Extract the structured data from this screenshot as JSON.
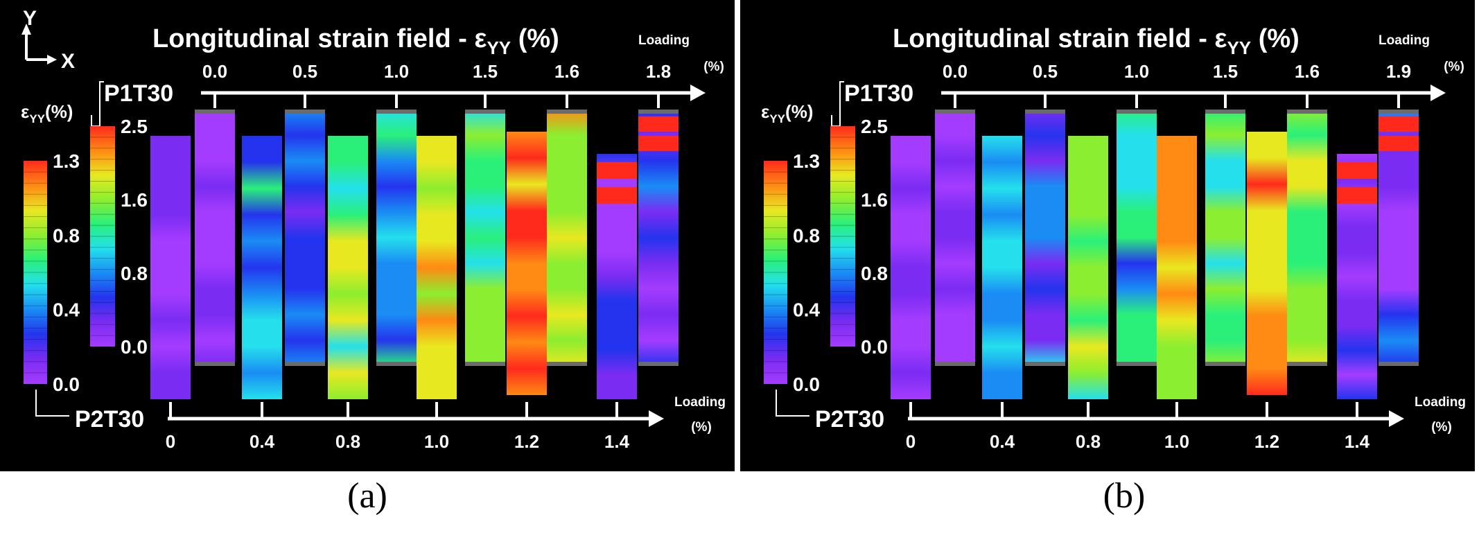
{
  "panels": [
    {
      "id": "a",
      "caption": "(a)",
      "title_prefix": "Longitudinal strain field - ε",
      "title_sub": "YY",
      "title_suffix": "  (%)",
      "axis_y": "Y",
      "axis_x": "X",
      "loading_top": [
        "Loading",
        "(%)"
      ],
      "loading_bottom": [
        "Loading",
        "(%)"
      ],
      "specimen_top": "P1T30",
      "specimen_bottom": "P2T30",
      "top_levels": [
        "0.0",
        "0.5",
        "1.0",
        "1.5",
        "1.6",
        "1.8"
      ],
      "bottom_levels": [
        "0",
        "0.4",
        "0.8",
        "1.0",
        "1.2",
        "1.4"
      ]
    },
    {
      "id": "b",
      "caption": "(b)",
      "title_prefix": "Longitudinal strain field - ε",
      "title_sub": "YY",
      "title_suffix": "  (%)",
      "axis_y": "",
      "axis_x": "",
      "loading_top": [
        "Loading",
        "(%)"
      ],
      "loading_bottom": [
        "Loading",
        "(%)"
      ],
      "specimen_top": "P1T30",
      "specimen_bottom": "P2T30",
      "top_levels": [
        "0.0",
        "0.5",
        "1.0",
        "1.5",
        "1.6",
        "1.9"
      ],
      "bottom_levels": [
        "0",
        "0.4",
        "0.8",
        "1.0",
        "1.2",
        "1.4"
      ]
    }
  ],
  "chart_data": {
    "type": "heatmap",
    "title": "Longitudinal strain field - εYY (%)",
    "colorbars": [
      {
        "specimen": "P1T30",
        "label": "εYY(%)",
        "ticks": [
          "2.5",
          "1.6",
          "0.8",
          "0.0"
        ],
        "range": [
          0.0,
          2.5
        ]
      },
      {
        "specimen": "P2T30",
        "label": "εYY(%)",
        "ticks": [
          "1.3",
          "0.8",
          "0.4",
          "0.0"
        ],
        "range": [
          0.0,
          1.3
        ]
      }
    ],
    "series": [
      {
        "name": "P1T30 (a)",
        "loading_percent": [
          0.0,
          0.5,
          1.0,
          1.5,
          1.6,
          1.8
        ]
      },
      {
        "name": "P2T30 (a)",
        "loading_percent": [
          0,
          0.4,
          0.8,
          1.0,
          1.2,
          1.4
        ]
      },
      {
        "name": "P1T30 (b)",
        "loading_percent": [
          0.0,
          0.5,
          1.0,
          1.5,
          1.6,
          1.9
        ]
      },
      {
        "name": "P2T30 (b)",
        "loading_percent": [
          0,
          0.4,
          0.8,
          1.0,
          1.2,
          1.4
        ]
      }
    ]
  },
  "colors": {
    "background": "#000000",
    "text": "#ffffff",
    "cmap": [
      "#a43cff",
      "#7a2cf2",
      "#2434ee",
      "#1a8cf4",
      "#24e0ec",
      "#2af07a",
      "#8cee30",
      "#e8e820",
      "#ff8a14",
      "#ff2a1c"
    ]
  }
}
